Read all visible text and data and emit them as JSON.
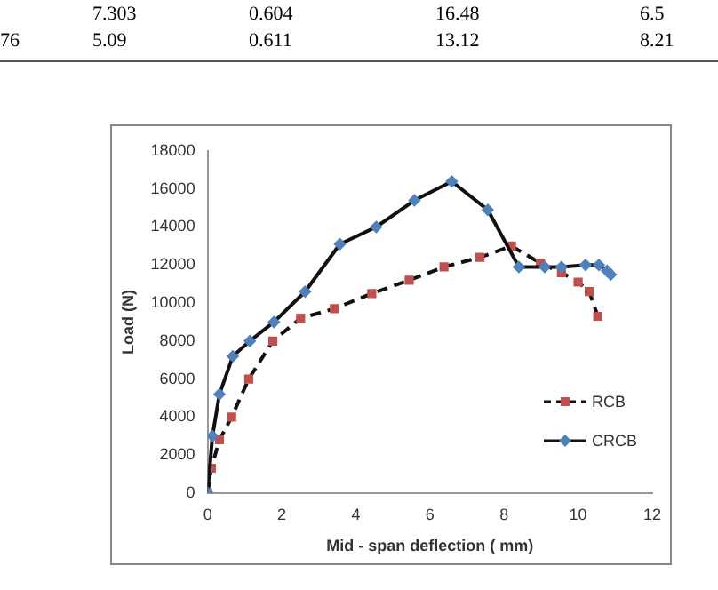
{
  "chart_data": {
    "type": "line",
    "xlabel": "Mid - span deflection ( mm)",
    "ylabel": "Load (N)",
    "annotations": [
      "7.303 0.604 16.48 6.5",
      "76 5.09 0.611 13.12 8.21"
    ],
    "xlim": [
      0,
      12
    ],
    "xticks": [
      0,
      2,
      4,
      6,
      8,
      10,
      12
    ],
    "ylim": [
      0,
      18000
    ],
    "yticks": [
      0,
      2000,
      4000,
      6000,
      8000,
      10000,
      12000,
      14000,
      16000,
      18000
    ],
    "legend": "bottom right",
    "grid": false,
    "series": [
      {
        "name": "RCB",
        "color": "#c0504d",
        "marker": "square",
        "line_style": "dashed",
        "x": [
          0,
          0.1,
          0.32,
          0.65,
          1.11,
          1.76,
          2.51,
          3.42,
          4.43,
          5.44,
          6.38,
          7.35,
          8.2,
          8.98,
          9.55,
          10.0,
          10.3,
          10.53
        ],
        "values": [
          0,
          1300,
          2800,
          4000,
          6000,
          8000,
          9200,
          9700,
          10500,
          11200,
          11900,
          12400,
          13000,
          12100,
          11600,
          11100,
          10600,
          9300
        ]
      },
      {
        "name": "CRCB",
        "color": "#4f81bd",
        "marker": "diamond",
        "line_style": "solid",
        "x": [
          0,
          0.13,
          0.32,
          0.68,
          1.14,
          1.79,
          2.63,
          3.57,
          4.55,
          5.58,
          6.59,
          7.56,
          8.4,
          9.1,
          9.55,
          10.2,
          10.56,
          10.78,
          10.88
        ],
        "values": [
          0,
          3000,
          5200,
          7200,
          8000,
          9000,
          10600,
          13100,
          14000,
          15400,
          16400,
          14900,
          11900,
          11900,
          11900,
          12000,
          12000,
          11700,
          11500
        ]
      }
    ]
  }
}
